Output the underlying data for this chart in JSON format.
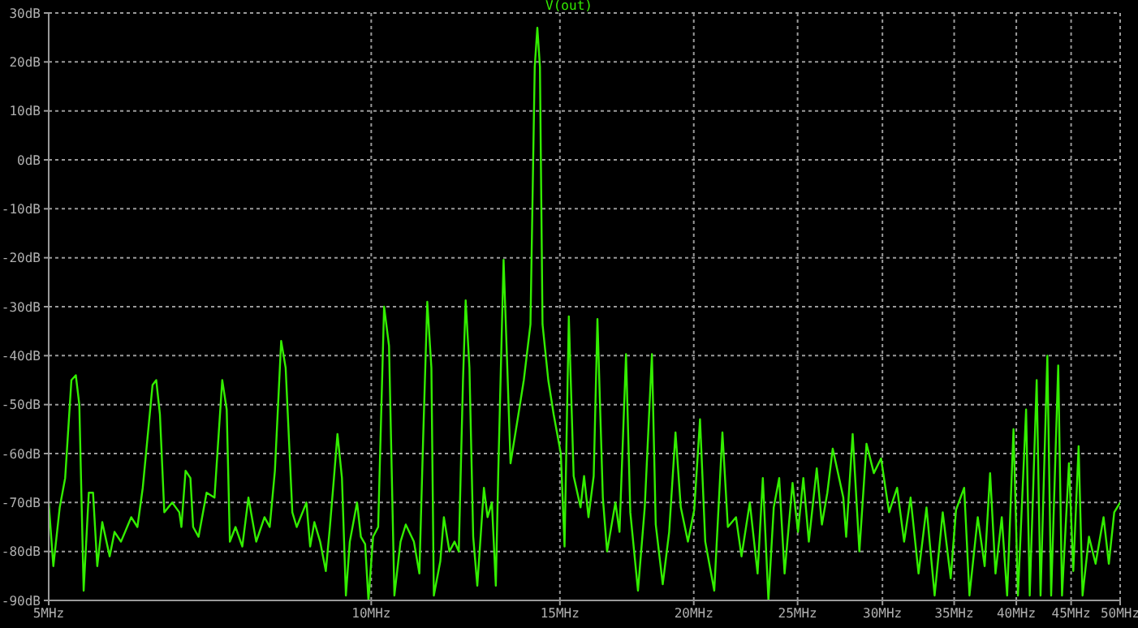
{
  "chart_data": {
    "type": "line",
    "title": "V(out)",
    "x": [
      5.0,
      5.05,
      5.12,
      5.18,
      5.25,
      5.3,
      5.34,
      5.39,
      5.45,
      5.5,
      5.55,
      5.61,
      5.7,
      5.76,
      5.84,
      5.97,
      6.05,
      6.12,
      6.25,
      6.3,
      6.35,
      6.41,
      6.52,
      6.62,
      6.65,
      6.71,
      6.78,
      6.82,
      6.9,
      7.02,
      7.14,
      7.26,
      7.33,
      7.38,
      7.47,
      7.58,
      7.68,
      7.81,
      7.95,
      8.04,
      8.13,
      8.24,
      8.32,
      8.44,
      8.52,
      8.7,
      8.77,
      8.85,
      8.96,
      9.07,
      9.15,
      9.23,
      9.3,
      9.39,
      9.47,
      9.55,
      9.7,
      9.78,
      9.87,
      9.94,
      10.04,
      10.15,
      10.28,
      10.39,
      10.51,
      10.65,
      10.77,
      10.96,
      11.09,
      11.18,
      11.28,
      11.38,
      11.44,
      11.6,
      11.69,
      11.83,
      11.96,
      12.07,
      12.18,
      12.25,
      12.35,
      12.45,
      12.56,
      12.74,
      12.84,
      12.96,
      13.07,
      13.14,
      13.29,
      13.38,
      13.49,
      13.72,
      13.88,
      14.08,
      14.21,
      14.29,
      14.37,
      14.45,
      14.63,
      14.8,
      15.03,
      15.15,
      15.29,
      15.45,
      15.68,
      15.8,
      15.95,
      16.13,
      16.26,
      16.45,
      16.6,
      16.9,
      17.05,
      17.29,
      17.45,
      17.74,
      18.0,
      18.28,
      18.43,
      18.71,
      18.97,
      19.23,
      19.45,
      19.75,
      20.02,
      20.27,
      20.5,
      20.9,
      21.27,
      21.52,
      21.9,
      22.16,
      22.56,
      22.94,
      23.2,
      23.48,
      23.75,
      24.03,
      24.31,
      24.73,
      25.02,
      25.31,
      25.61,
      26.05,
      26.34,
      26.65,
      26.96,
      27.27,
      27.58,
      27.75,
      28.14,
      28.55,
      28.99,
      29.45,
      29.91,
      30.43,
      30.96,
      31.43,
      31.87,
      32.42,
      32.98,
      33.56,
      34.15,
      34.74,
      35.14,
      35.76,
      36.17,
      36.82,
      37.37,
      37.81,
      38.25,
      38.77,
      39.22,
      39.76,
      40.14,
      40.85,
      41.17,
      41.79,
      42.14,
      42.76,
      43.11,
      43.77,
      44.13,
      44.79,
      45.21,
      45.73,
      46.12,
      46.76,
      47.43,
      48.25,
      48.8,
      49.37,
      50.0
    ],
    "series": [
      {
        "color": "#33ee00",
        "values": [
          -70,
          -83,
          -71,
          -65,
          -45,
          -44,
          -50,
          -88,
          -68,
          -68,
          -83,
          -74,
          -81,
          -76,
          -78,
          -73,
          -75,
          -67,
          -46,
          -45,
          -52,
          -72,
          -70,
          -72,
          -75,
          -63.5,
          -65,
          -75,
          -77,
          -68,
          -69,
          -45,
          -51,
          -78,
          -75,
          -79,
          -69,
          -78,
          -73,
          -75,
          -63.5,
          -37,
          -42.5,
          -72,
          -75,
          -70,
          -79,
          -74,
          -78,
          -84,
          -75,
          -65,
          -56,
          -65,
          -89,
          -78,
          -70,
          -77,
          -78.5,
          -90,
          -77,
          -75,
          -30,
          -38,
          -89,
          -78,
          -74.5,
          -78,
          -84.5,
          -57,
          -29,
          -42.5,
          -89,
          -82,
          -73,
          -80,
          -78,
          -80,
          -45,
          -28.7,
          -42.5,
          -77,
          -87,
          -67,
          -73,
          -70,
          -87,
          -63.5,
          -20.4,
          -39,
          -62,
          -52,
          -45,
          -33.6,
          19,
          27,
          19,
          -33.6,
          -45,
          -52,
          -60,
          -79,
          -32,
          -64.6,
          -71,
          -64.6,
          -73,
          -64.6,
          -32.5,
          -69,
          -80,
          -70,
          -76,
          -39.7,
          -72,
          -88,
          -71,
          -39.7,
          -74.5,
          -86.7,
          -76,
          -55.7,
          -71,
          -78,
          -71.5,
          -53,
          -78,
          -88,
          -55.7,
          -75,
          -73,
          -81,
          -70,
          -84.5,
          -65,
          -90,
          -71,
          -65,
          -84.5,
          -66,
          -76,
          -65,
          -78,
          -63,
          -74.5,
          -68,
          -59,
          -64,
          -69,
          -77,
          -56,
          -80,
          -58,
          -64,
          -61,
          -72,
          -67,
          -78,
          -69,
          -84.5,
          -71,
          -89,
          -72,
          -85.5,
          -71.5,
          -67,
          -89,
          -73,
          -83,
          -64,
          -84.5,
          -73,
          -89,
          -55,
          -89,
          -51,
          -89,
          -45,
          -89,
          -40,
          -89,
          -42,
          -89,
          -62,
          -84,
          -58.5,
          -89,
          -77,
          -82.5,
          -73,
          -82.5,
          -72,
          -70
        ]
      }
    ],
    "xlim": [
      5,
      50
    ],
    "xticks": [
      {
        "value": 5,
        "label": "5MHz"
      },
      {
        "value": 10,
        "label": "10MHz"
      },
      {
        "value": 15,
        "label": "15MHz"
      },
      {
        "value": 20,
        "label": "20MHz"
      },
      {
        "value": 25,
        "label": "25MHz"
      },
      {
        "value": 30,
        "label": "30MHz"
      },
      {
        "value": 35,
        "label": "35MHz"
      },
      {
        "value": 40,
        "label": "40MHz"
      },
      {
        "value": 45,
        "label": "45MHz"
      },
      {
        "value": 50,
        "label": "50MHz"
      }
    ],
    "ylim": [
      -90,
      30
    ],
    "yticks": [
      {
        "value": -90,
        "label": "-90dB"
      },
      {
        "value": -80,
        "label": "-80dB"
      },
      {
        "value": -70,
        "label": "-70dB"
      },
      {
        "value": -60,
        "label": "-60dB"
      },
      {
        "value": -50,
        "label": "-50dB"
      },
      {
        "value": -40,
        "label": "-40dB"
      },
      {
        "value": -30,
        "label": "-30dB"
      },
      {
        "value": -20,
        "label": "-20dB"
      },
      {
        "value": -10,
        "label": "-10dB"
      },
      {
        "value": 0,
        "label": "0dB"
      },
      {
        "value": 10,
        "label": "10dB"
      },
      {
        "value": 20,
        "label": "20dB"
      },
      {
        "value": 30,
        "label": "30dB"
      }
    ],
    "log": "x",
    "grid": true,
    "marker": "none"
  }
}
